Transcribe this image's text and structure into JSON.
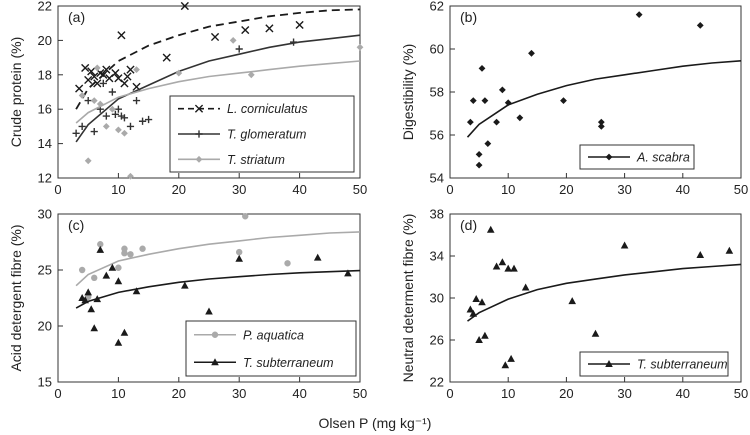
{
  "figure": {
    "x_label": "Olsen P (mg kg⁻¹)",
    "x_ticks": [
      "0",
      "10",
      "20",
      "30",
      "40",
      "50"
    ],
    "x_range": [
      0,
      50
    ]
  },
  "chart_data": [
    {
      "type": "scatter",
      "panel_label": "(a)",
      "ylabel": "Crude protein (%)",
      "xlim": [
        0,
        50
      ],
      "ylim": [
        12,
        22
      ],
      "yticks": [
        12,
        14,
        16,
        18,
        20,
        22
      ],
      "legend_position": "bottom-right",
      "series": [
        {
          "name": "L. corniculatus",
          "marker": "x",
          "line": "dashed",
          "color": "#1a1a1a",
          "x": [
            3.5,
            4.5,
            5,
            5.5,
            6,
            6.5,
            7,
            7.5,
            8,
            8.5,
            9.5,
            10,
            10.5,
            11,
            11.5,
            12,
            13,
            18,
            21,
            26,
            31,
            35,
            40
          ],
          "y": [
            17.2,
            18.4,
            17.7,
            18.2,
            17.9,
            17.5,
            18.1,
            18.0,
            18.3,
            17.8,
            18.1,
            17.8,
            20.3,
            17.5,
            17.9,
            18.3,
            17.3,
            19.0,
            22.0,
            20.2,
            20.6,
            20.7,
            20.9
          ],
          "fit": [
            [
              3,
              16.0
            ],
            [
              5,
              17.2
            ],
            [
              10,
              18.8
            ],
            [
              15,
              19.7
            ],
            [
              20,
              20.3
            ],
            [
              25,
              20.8
            ],
            [
              30,
              21.1
            ],
            [
              35,
              21.4
            ],
            [
              40,
              21.6
            ],
            [
              45,
              21.75
            ],
            [
              50,
              21.8
            ]
          ]
        },
        {
          "name": "T. glomeratum",
          "marker": "+",
          "line": "solid",
          "color": "#333333",
          "x": [
            3,
            4,
            5,
            6,
            7,
            7.5,
            8,
            9,
            9.5,
            10,
            10.5,
            11,
            12,
            13,
            14,
            15,
            30,
            39
          ],
          "y": [
            14.6,
            15.0,
            16.5,
            14.7,
            16.0,
            17.5,
            15.6,
            17.0,
            15.7,
            16.0,
            15.6,
            15.5,
            15.0,
            16.5,
            15.3,
            15.4,
            19.5,
            19.9
          ],
          "fit": [
            [
              3,
              14.1
            ],
            [
              5,
              15.1
            ],
            [
              10,
              16.6
            ],
            [
              15,
              17.4
            ],
            [
              20,
              18.2
            ],
            [
              25,
              18.8
            ],
            [
              30,
              19.2
            ],
            [
              35,
              19.6
            ],
            [
              40,
              19.9
            ],
            [
              45,
              20.1
            ],
            [
              50,
              20.3
            ]
          ]
        },
        {
          "name": "T. striatum",
          "marker": "diamond",
          "line": "solid",
          "color": "#aaaaaa",
          "x": [
            4,
            5,
            6,
            6.5,
            7,
            8,
            9,
            10,
            11,
            12,
            13,
            20,
            29,
            32,
            50
          ],
          "y": [
            16.8,
            13.0,
            16.5,
            18.4,
            16.3,
            15.0,
            16.0,
            14.8,
            14.6,
            12.1,
            18.3,
            18.1,
            20.0,
            18.0,
            19.6
          ],
          "fit": [
            [
              3,
              15.2
            ],
            [
              5,
              15.8
            ],
            [
              10,
              16.7
            ],
            [
              15,
              17.2
            ],
            [
              20,
              17.6
            ],
            [
              25,
              17.9
            ],
            [
              30,
              18.1
            ],
            [
              35,
              18.3
            ],
            [
              40,
              18.5
            ],
            [
              45,
              18.65
            ],
            [
              50,
              18.8
            ]
          ]
        }
      ]
    },
    {
      "type": "scatter",
      "panel_label": "(b)",
      "ylabel": "Digestibility (%)",
      "xlim": [
        0,
        50
      ],
      "ylim": [
        54,
        62
      ],
      "yticks": [
        54,
        56,
        58,
        60,
        62
      ],
      "legend_position": "bottom-right",
      "series": [
        {
          "name": "A. scabra",
          "marker": "diamond",
          "line": "solid",
          "color": "#1a1a1a",
          "x": [
            3.5,
            4,
            5,
            5,
            5.5,
            6,
            6.5,
            8,
            9,
            10,
            12,
            14,
            19.5,
            26,
            26,
            32.5,
            43
          ],
          "y": [
            56.6,
            57.6,
            54.6,
            55.1,
            59.1,
            57.6,
            55.6,
            56.6,
            58.1,
            57.5,
            56.8,
            59.8,
            57.6,
            56.6,
            56.4,
            61.6,
            61.1
          ],
          "fit": [
            [
              3,
              55.9
            ],
            [
              5,
              56.5
            ],
            [
              10,
              57.4
            ],
            [
              15,
              57.9
            ],
            [
              20,
              58.3
            ],
            [
              25,
              58.6
            ],
            [
              30,
              58.8
            ],
            [
              35,
              59.0
            ],
            [
              40,
              59.2
            ],
            [
              45,
              59.35
            ],
            [
              50,
              59.45
            ]
          ]
        }
      ]
    },
    {
      "type": "scatter",
      "panel_label": "(c)",
      "ylabel": "Acid detergent fibre (%)",
      "xlim": [
        0,
        50
      ],
      "ylim": [
        15,
        30
      ],
      "yticks": [
        15,
        20,
        25,
        30
      ],
      "legend_position": "bottom-right",
      "series": [
        {
          "name": "P. aquatica",
          "marker": "circle",
          "line": "solid",
          "color": "#aaaaaa",
          "x": [
            4,
            5,
            6,
            7,
            10,
            11,
            11,
            12,
            14,
            30,
            31,
            38
          ],
          "y": [
            25.0,
            22.6,
            24.3,
            27.3,
            25.2,
            26.9,
            26.5,
            26.4,
            26.9,
            26.6,
            29.8,
            25.6
          ],
          "fit": [
            [
              3,
              23.6
            ],
            [
              5,
              24.6
            ],
            [
              10,
              25.8
            ],
            [
              15,
              26.4
            ],
            [
              20,
              26.9
            ],
            [
              25,
              27.3
            ],
            [
              30,
              27.6
            ],
            [
              35,
              27.9
            ],
            [
              40,
              28.1
            ],
            [
              45,
              28.3
            ],
            [
              50,
              28.4
            ]
          ]
        },
        {
          "name": "T. subterraneum",
          "marker": "triangle",
          "line": "solid",
          "color": "#1a1a1a",
          "x": [
            4,
            4.5,
            5,
            5.5,
            6,
            6.5,
            7,
            8,
            9,
            10,
            10,
            11,
            13,
            21,
            25,
            30,
            43,
            48
          ],
          "y": [
            22.5,
            22.3,
            23.0,
            21.5,
            19.8,
            22.4,
            26.8,
            24.5,
            25.2,
            24.0,
            18.5,
            19.4,
            23.1,
            23.6,
            21.3,
            26.0,
            26.1,
            24.7
          ],
          "fit": [
            [
              3,
              21.6
            ],
            [
              5,
              22.2
            ],
            [
              10,
              23.0
            ],
            [
              15,
              23.5
            ],
            [
              20,
              23.9
            ],
            [
              25,
              24.2
            ],
            [
              30,
              24.4
            ],
            [
              35,
              24.6
            ],
            [
              40,
              24.75
            ],
            [
              45,
              24.85
            ],
            [
              50,
              24.95
            ]
          ]
        }
      ]
    },
    {
      "type": "scatter",
      "panel_label": "(d)",
      "ylabel": "Neutral determent fibre (%)",
      "xlim": [
        0,
        50
      ],
      "ylim": [
        22,
        38
      ],
      "yticks": [
        22,
        26,
        30,
        34,
        38
      ],
      "legend_position": "bottom-right",
      "series": [
        {
          "name": "T. subterraneum",
          "marker": "triangle",
          "line": "solid",
          "color": "#1a1a1a",
          "x": [
            3.5,
            4,
            4.5,
            5,
            5.5,
            6,
            7,
            8,
            9,
            9.5,
            10,
            10.5,
            11,
            13,
            21,
            25,
            30,
            43,
            48
          ],
          "y": [
            28.9,
            28.5,
            29.9,
            26.0,
            29.6,
            26.4,
            36.5,
            33.0,
            33.4,
            23.6,
            32.8,
            24.2,
            32.8,
            31.0,
            29.7,
            26.6,
            35.0,
            34.1,
            34.5
          ],
          "fit": [
            [
              3,
              27.8
            ],
            [
              5,
              28.6
            ],
            [
              10,
              29.9
            ],
            [
              15,
              30.8
            ],
            [
              20,
              31.4
            ],
            [
              25,
              31.8
            ],
            [
              30,
              32.2
            ],
            [
              35,
              32.5
            ],
            [
              40,
              32.8
            ],
            [
              45,
              33.0
            ],
            [
              50,
              33.2
            ]
          ]
        }
      ]
    }
  ]
}
